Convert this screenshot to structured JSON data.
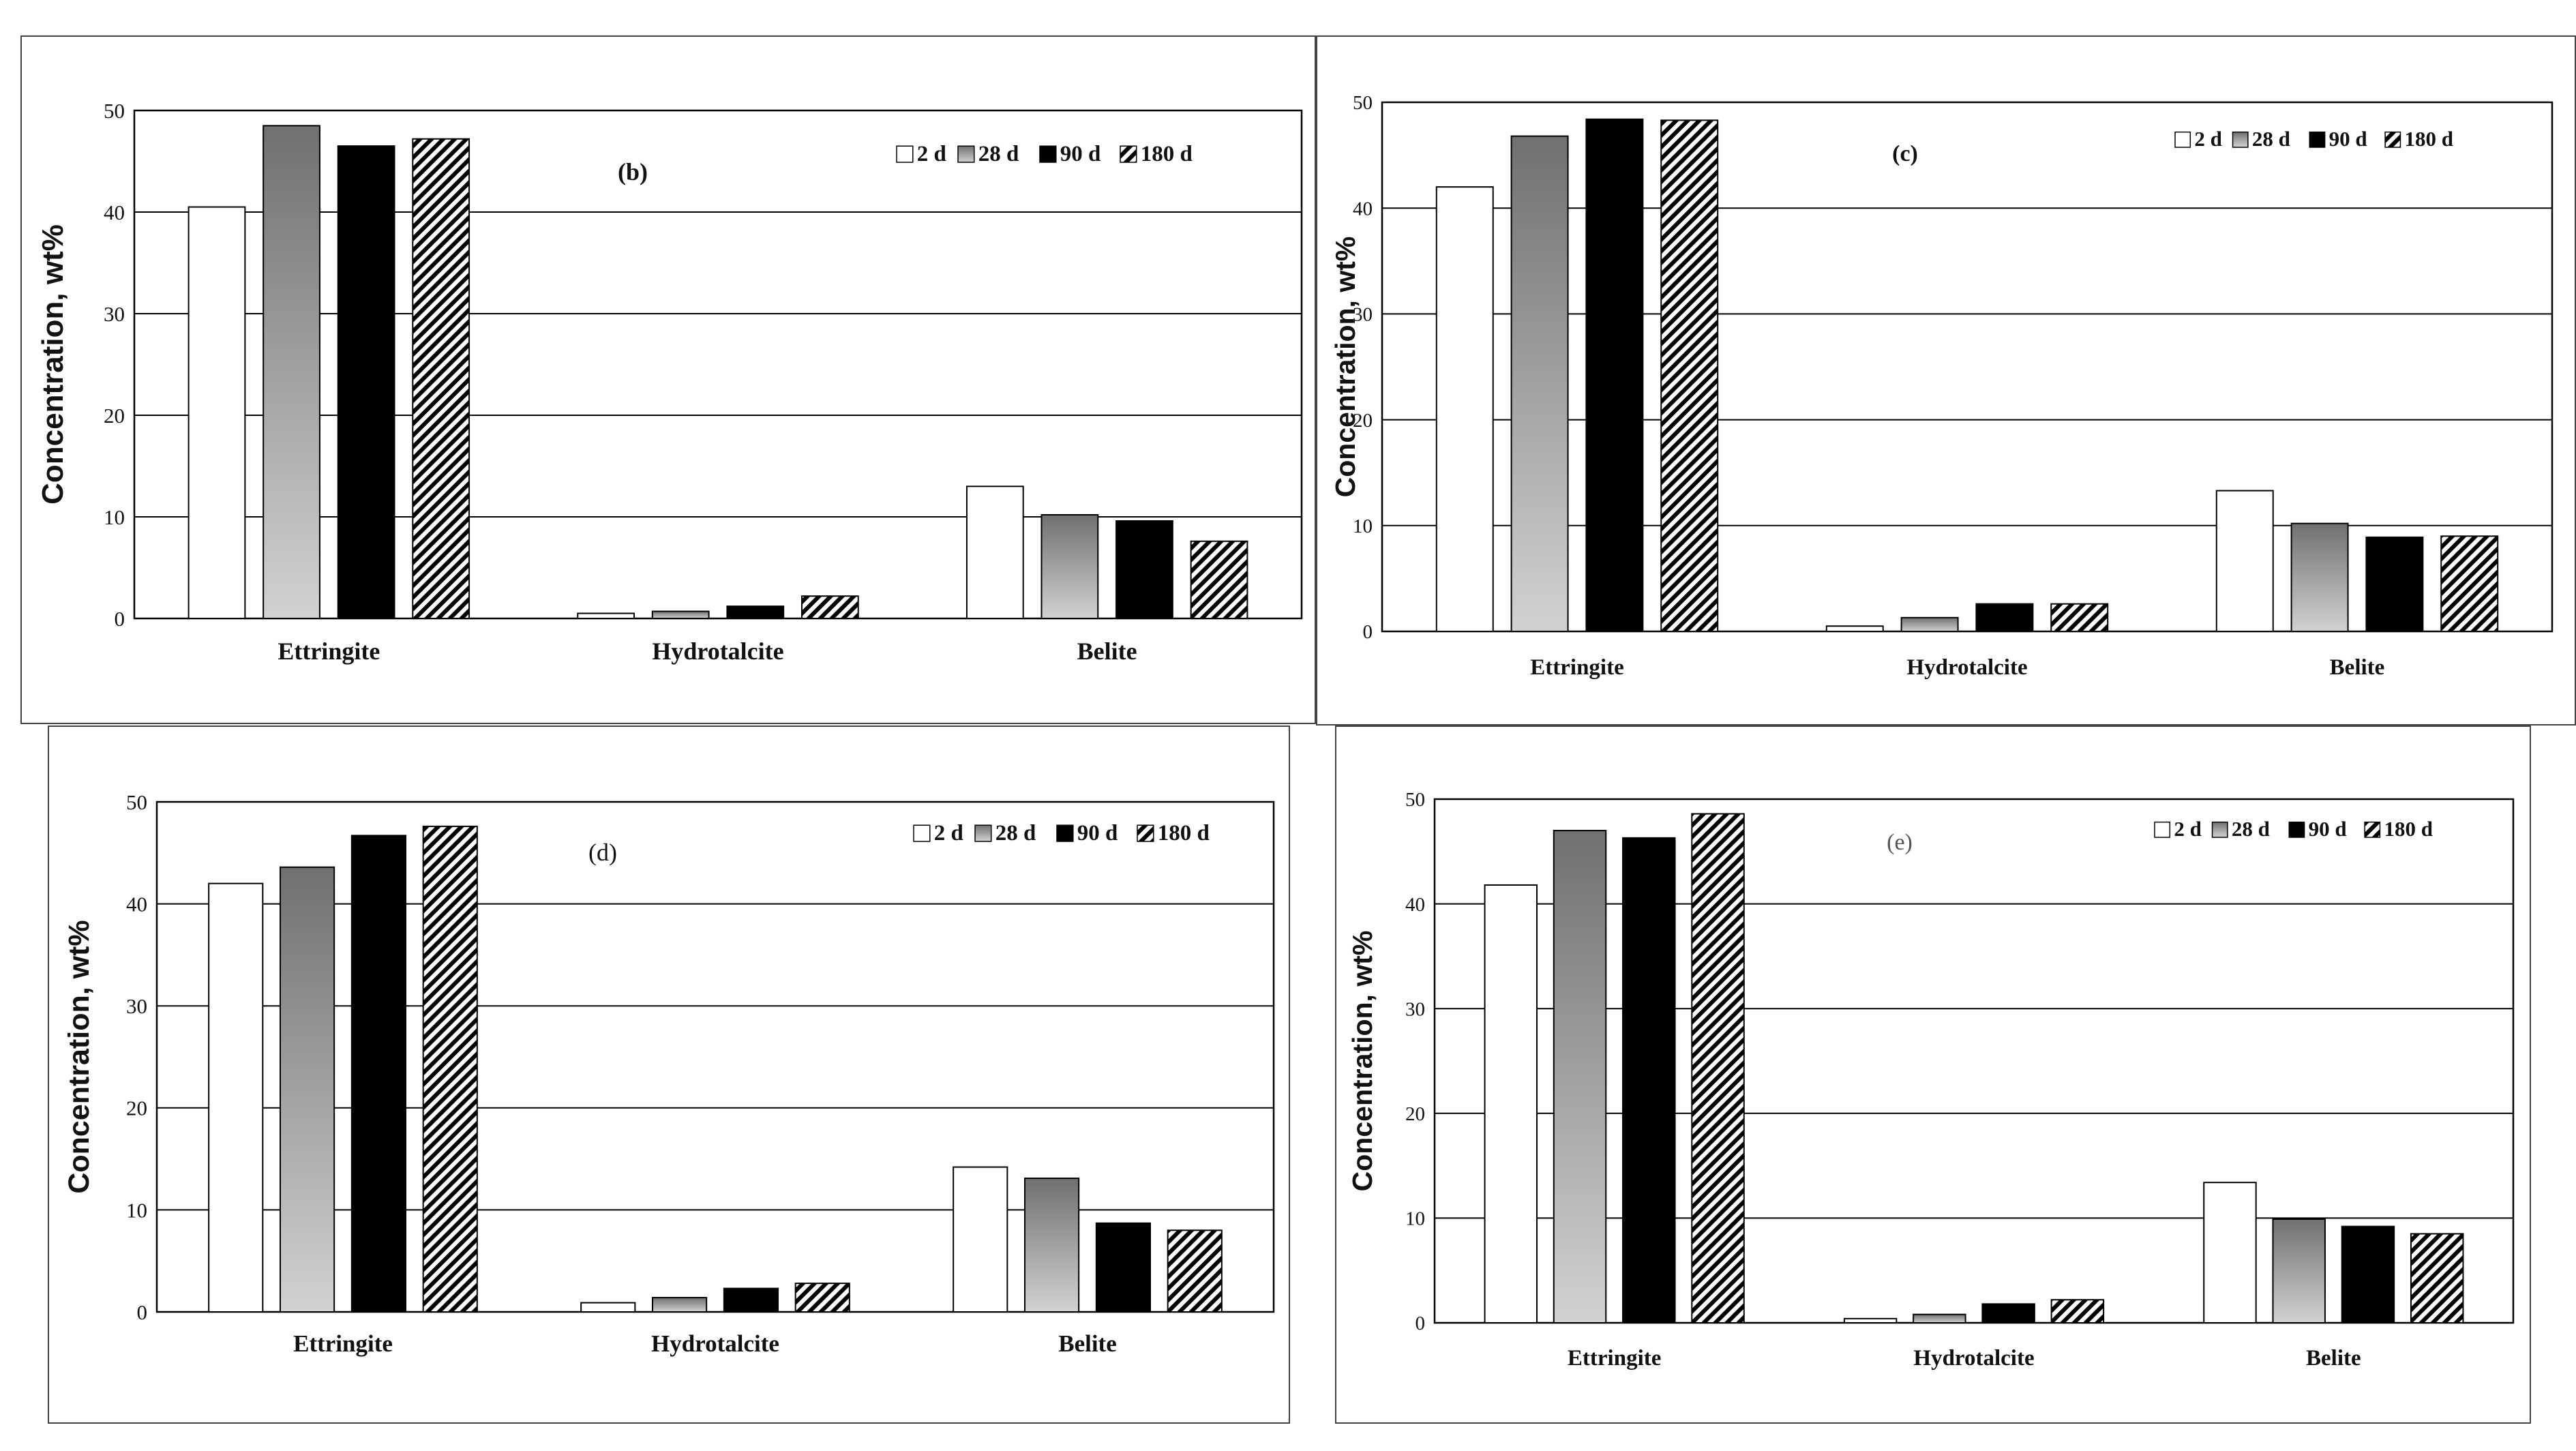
{
  "chart_data": [
    {
      "type": "bar",
      "panel_label": "(b)",
      "ylabel": "Concentration, wt%",
      "ylim": [
        0,
        50
      ],
      "yticks": [
        "0",
        "10",
        "20",
        "30",
        "40",
        "50"
      ],
      "grid": true,
      "legend_position": "top-right",
      "categories": [
        "Ettringite",
        "Hydrotalcite",
        "Belite"
      ],
      "series": [
        {
          "name": "2 d",
          "values": [
            40.5,
            0.5,
            13.0
          ]
        },
        {
          "name": "28 d",
          "values": [
            48.5,
            0.7,
            10.2
          ]
        },
        {
          "name": "90 d",
          "values": [
            46.5,
            1.2,
            9.6
          ]
        },
        {
          "name": "180 d",
          "values": [
            47.2,
            2.2,
            7.6
          ]
        }
      ]
    },
    {
      "type": "bar",
      "panel_label": "(c)",
      "ylabel": "Concentration, wt%",
      "ylim": [
        0,
        50
      ],
      "yticks": [
        "0",
        "10",
        "20",
        "30",
        "40",
        "50"
      ],
      "grid": true,
      "legend_position": "top-right",
      "categories": [
        "Ettringite",
        "Hydrotalcite",
        "Belite"
      ],
      "series": [
        {
          "name": "2 d",
          "values": [
            42.0,
            0.5,
            13.3
          ]
        },
        {
          "name": "28 d",
          "values": [
            46.8,
            1.3,
            10.2
          ]
        },
        {
          "name": "90 d",
          "values": [
            48.4,
            2.6,
            8.9
          ]
        },
        {
          "name": "180 d",
          "values": [
            48.3,
            2.6,
            9.0
          ]
        }
      ]
    },
    {
      "type": "bar",
      "panel_label": "(d)",
      "ylabel": "Concentration, wt%",
      "ylim": [
        0,
        50
      ],
      "yticks": [
        "0",
        "10",
        "20",
        "30",
        "40",
        "50"
      ],
      "grid": true,
      "legend_position": "top-right",
      "categories": [
        "Ettringite",
        "Hydrotalcite",
        "Belite"
      ],
      "series": [
        {
          "name": "2 d",
          "values": [
            42.0,
            0.9,
            14.2
          ]
        },
        {
          "name": "28 d",
          "values": [
            43.6,
            1.4,
            13.1
          ]
        },
        {
          "name": "90 d",
          "values": [
            46.7,
            2.3,
            8.7
          ]
        },
        {
          "name": "180 d",
          "values": [
            47.6,
            2.8,
            8.0
          ]
        }
      ]
    },
    {
      "type": "bar",
      "panel_label": "(e)",
      "ylabel": "Concentration, wt%",
      "ylim": [
        0,
        50
      ],
      "yticks": [
        "0",
        "10",
        "20",
        "30",
        "40",
        "50"
      ],
      "grid": true,
      "legend_position": "top-right",
      "categories": [
        "Ettringite",
        "Hydrotalcite",
        "Belite"
      ],
      "series": [
        {
          "name": "2 d",
          "values": [
            41.8,
            0.4,
            13.4
          ]
        },
        {
          "name": "28 d",
          "values": [
            47.0,
            0.8,
            9.9
          ]
        },
        {
          "name": "90 d",
          "values": [
            46.3,
            1.8,
            9.2
          ]
        },
        {
          "name": "180 d",
          "values": [
            48.6,
            2.2,
            8.5
          ]
        }
      ]
    }
  ],
  "series_styles": {
    "2 d": {
      "fill": "#ffffff"
    },
    "28 d": {
      "gradient_top": "#707070",
      "gradient_bottom": "#d2d2d2"
    },
    "90 d": {
      "fill": "#000000"
    },
    "180 d": {
      "pattern": "diagonal-hatch",
      "color": "#000000"
    }
  }
}
